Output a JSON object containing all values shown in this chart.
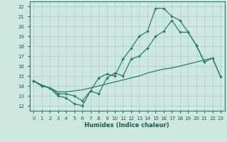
{
  "xlabel": "Humidex (Indice chaleur)",
  "bg_color": "#cce8e0",
  "grid_color": "#aacccc",
  "line_color": "#2a7a6a",
  "xlim": [
    -0.5,
    23.5
  ],
  "ylim": [
    11.5,
    22.5
  ],
  "xticks": [
    0,
    1,
    2,
    3,
    4,
    5,
    6,
    7,
    8,
    9,
    10,
    11,
    12,
    13,
    14,
    15,
    16,
    17,
    18,
    19,
    20,
    21,
    22,
    23
  ],
  "yticks": [
    12,
    13,
    14,
    15,
    16,
    17,
    18,
    19,
    20,
    21,
    22
  ],
  "line1_x": [
    0,
    1,
    2,
    3,
    4,
    5,
    6,
    7,
    8,
    9,
    10,
    11,
    12,
    13,
    14,
    15,
    16,
    17,
    18,
    19,
    20,
    21
  ],
  "line1_y": [
    14.5,
    14.0,
    13.8,
    13.2,
    13.2,
    13.0,
    12.5,
    13.5,
    14.8,
    15.2,
    15.0,
    16.7,
    17.8,
    19.0,
    19.5,
    21.8,
    21.8,
    21.0,
    20.6,
    19.4,
    18.1,
    16.4
  ],
  "line2_x": [
    0,
    1,
    2,
    3,
    4,
    5,
    6,
    7,
    8,
    9,
    10,
    11,
    12,
    13,
    14,
    15,
    16,
    17,
    18,
    19,
    20,
    21,
    22,
    23
  ],
  "line2_y": [
    14.5,
    14.1,
    13.8,
    13.4,
    13.4,
    13.5,
    13.6,
    13.8,
    14.0,
    14.2,
    14.4,
    14.6,
    14.8,
    15.0,
    15.3,
    15.5,
    15.7,
    15.8,
    16.0,
    16.2,
    16.4,
    16.6,
    16.8,
    14.9
  ],
  "line3_x": [
    0,
    1,
    2,
    3,
    4,
    5,
    6,
    7,
    8,
    9,
    10,
    11,
    12,
    13,
    14,
    15,
    16,
    17,
    18,
    19,
    20,
    21,
    22,
    23
  ],
  "line3_y": [
    14.5,
    14.0,
    13.8,
    13.0,
    12.8,
    12.2,
    12.0,
    13.5,
    13.2,
    14.8,
    15.3,
    15.0,
    16.7,
    17.0,
    17.8,
    19.0,
    19.5,
    20.6,
    19.4,
    19.4,
    18.1,
    16.4,
    16.8,
    14.9
  ]
}
